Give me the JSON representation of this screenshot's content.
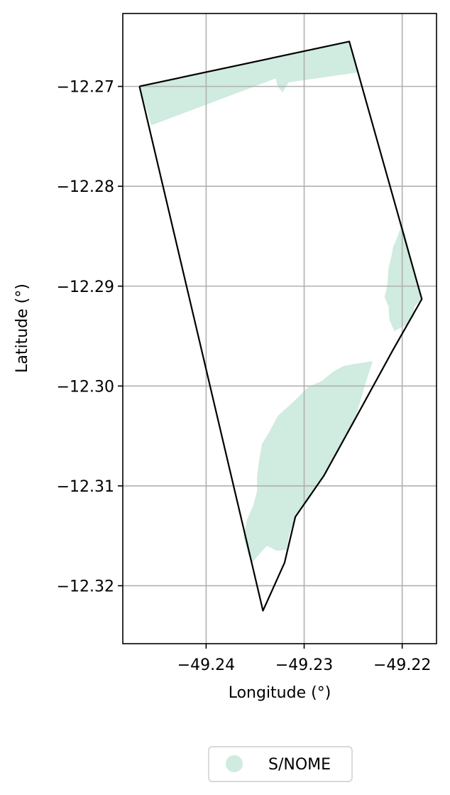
{
  "chart_data": {
    "type": "map",
    "xlabel": "Longitude (°)",
    "ylabel": "Latitude (°)",
    "xlim": [
      -49.2485,
      -49.2165
    ],
    "ylim": [
      -12.3258,
      -12.2627
    ],
    "xticks": [
      -49.24,
      -49.23,
      -49.22
    ],
    "yticks": [
      -12.27,
      -12.28,
      -12.29,
      -12.3,
      -12.31,
      -12.32
    ],
    "xtick_labels": [
      "−49.24",
      "−49.23",
      "−49.22"
    ],
    "ytick_labels": [
      "−12.27",
      "−12.28",
      "−12.29",
      "−12.30",
      "−12.31",
      "−12.32"
    ],
    "grid": true,
    "legend": {
      "placement": "bottom-center",
      "entries": [
        {
          "label": "S/NOME",
          "color": "#d0ebdf"
        }
      ]
    },
    "fill_color": "#d0ebdf",
    "boundary_color": "#000000",
    "boundary": [
      [
        -49.2468,
        -12.27
      ],
      [
        -49.2254,
        -12.2655
      ],
      [
        -49.218,
        -12.2913
      ],
      [
        -49.221,
        -12.2965
      ],
      [
        -49.2248,
        -12.3033
      ],
      [
        -49.228,
        -12.309
      ],
      [
        -49.2309,
        -12.3131
      ],
      [
        -49.232,
        -12.3177
      ],
      [
        -49.2342,
        -12.3225
      ],
      [
        -49.2468,
        -12.27
      ]
    ],
    "regions": [
      {
        "name": "S/NOME",
        "polygon": [
          [
            -49.2468,
            -12.27
          ],
          [
            -49.2254,
            -12.2655
          ],
          [
            -49.2245,
            -12.2686
          ],
          [
            -49.2316,
            -12.2696
          ],
          [
            -49.2322,
            -12.2706
          ],
          [
            -49.2327,
            -12.27
          ],
          [
            -49.2329,
            -12.2692
          ],
          [
            -49.2456,
            -12.2739
          ]
        ]
      },
      {
        "name": "S/NOME",
        "polygon": [
          [
            -49.22,
            -12.2837
          ],
          [
            -49.218,
            -12.2913
          ],
          [
            -49.2188,
            -12.2921
          ],
          [
            -49.2188,
            -12.293
          ],
          [
            -49.2194,
            -12.2938
          ],
          [
            -49.2208,
            -12.2945
          ],
          [
            -49.2213,
            -12.2934
          ],
          [
            -49.2214,
            -12.292
          ],
          [
            -49.2218,
            -12.2911
          ],
          [
            -49.2215,
            -12.2899
          ],
          [
            -49.2214,
            -12.2882
          ],
          [
            -49.2211,
            -12.287
          ],
          [
            -49.2209,
            -12.286
          ],
          [
            -49.2205,
            -12.2851
          ]
        ]
      },
      {
        "name": "S/NOME",
        "polygon": [
          [
            -49.223,
            -12.2975
          ],
          [
            -49.2238,
            -12.2999
          ],
          [
            -49.2248,
            -12.3033
          ],
          [
            -49.228,
            -12.309
          ],
          [
            -49.2294,
            -12.3112
          ],
          [
            -49.2309,
            -12.3131
          ],
          [
            -49.2315,
            -12.3148
          ],
          [
            -49.2318,
            -12.3164
          ],
          [
            -49.2328,
            -12.3165
          ],
          [
            -49.2338,
            -12.316
          ],
          [
            -49.2348,
            -12.3171
          ],
          [
            -49.2354,
            -12.3178
          ],
          [
            -49.2358,
            -12.3165
          ],
          [
            -49.2362,
            -12.315
          ],
          [
            -49.2358,
            -12.3133
          ],
          [
            -49.2352,
            -12.312
          ],
          [
            -49.2348,
            -12.3105
          ],
          [
            -49.2348,
            -12.309
          ],
          [
            -49.2346,
            -12.3075
          ],
          [
            -49.2343,
            -12.3058
          ],
          [
            -49.2335,
            -12.3045
          ],
          [
            -49.2327,
            -12.303
          ],
          [
            -49.2318,
            -12.3022
          ],
          [
            -49.2308,
            -12.3013
          ],
          [
            -49.2296,
            -12.3001
          ],
          [
            -49.2282,
            -12.2995
          ],
          [
            -49.2271,
            -12.2986
          ],
          [
            -49.226,
            -12.298
          ],
          [
            -49.2249,
            -12.2978
          ]
        ]
      }
    ]
  }
}
